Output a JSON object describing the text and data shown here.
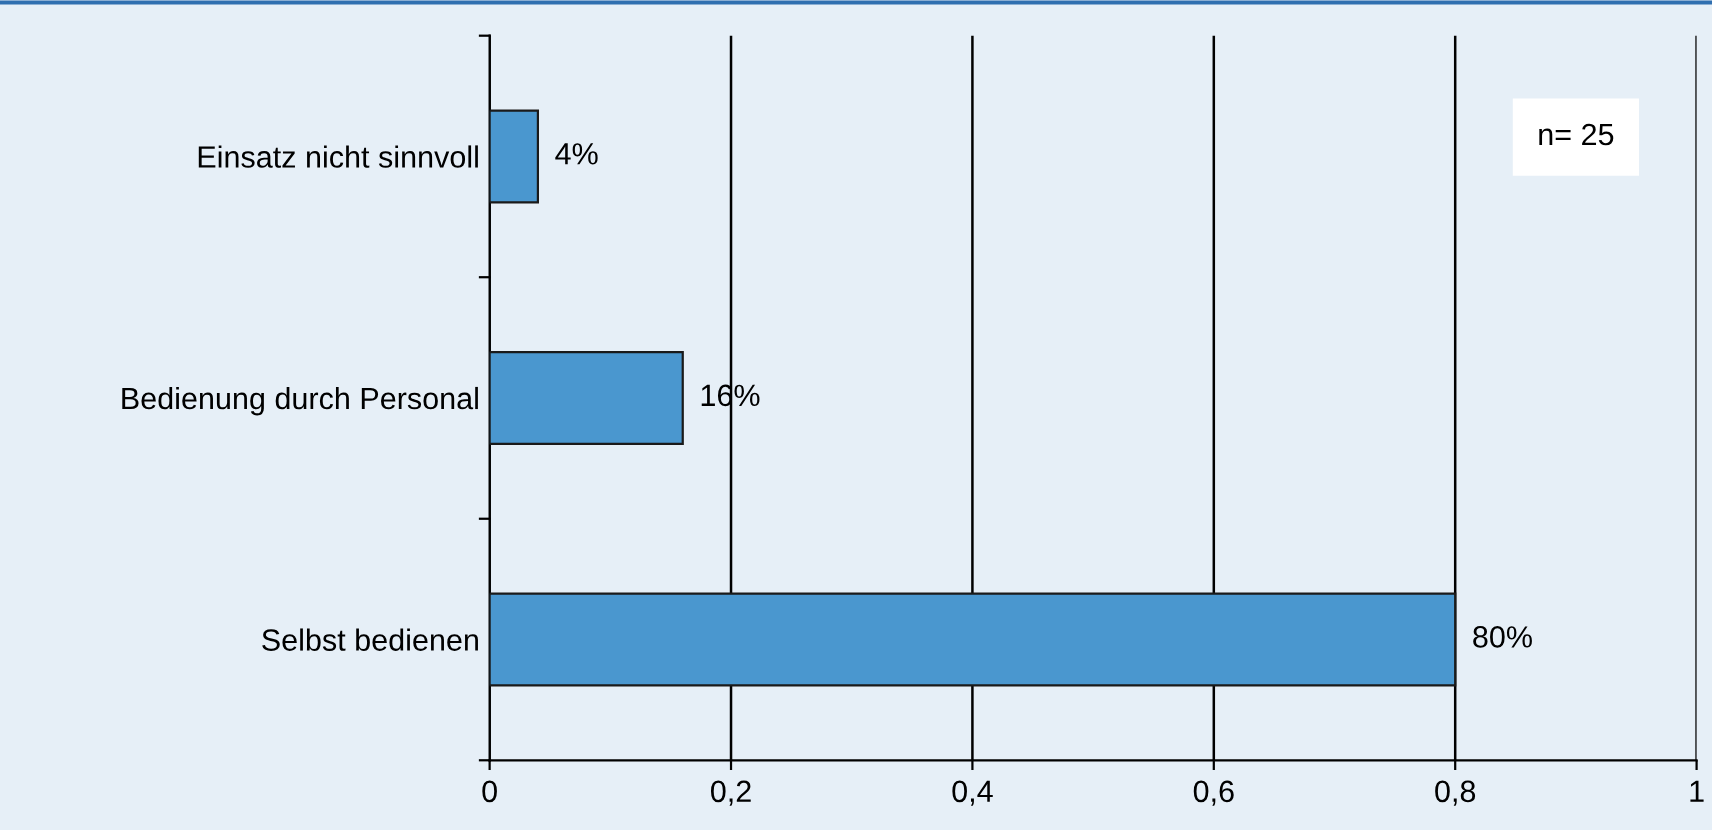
{
  "chart_data": {
    "type": "bar",
    "orientation": "horizontal",
    "categories": [
      "Einsatz nicht sinnvoll",
      "Bedienung durch Personal",
      "Selbst bedienen"
    ],
    "values": [
      0.04,
      0.16,
      0.8
    ],
    "value_labels": [
      "4%",
      "16%",
      "80%"
    ],
    "color": "#4a97cf",
    "xlim": [
      0,
      1
    ],
    "xticks": [
      {
        "value": 0,
        "label": "0"
      },
      {
        "value": 0.2,
        "label": "0,2"
      },
      {
        "value": 0.4,
        "label": "0,4"
      },
      {
        "value": 0.6,
        "label": "0,6"
      },
      {
        "value": 0.8,
        "label": "0,8"
      },
      {
        "value": 1,
        "label": "1"
      }
    ],
    "grid": "x",
    "annotations": [
      "n= 25"
    ]
  }
}
